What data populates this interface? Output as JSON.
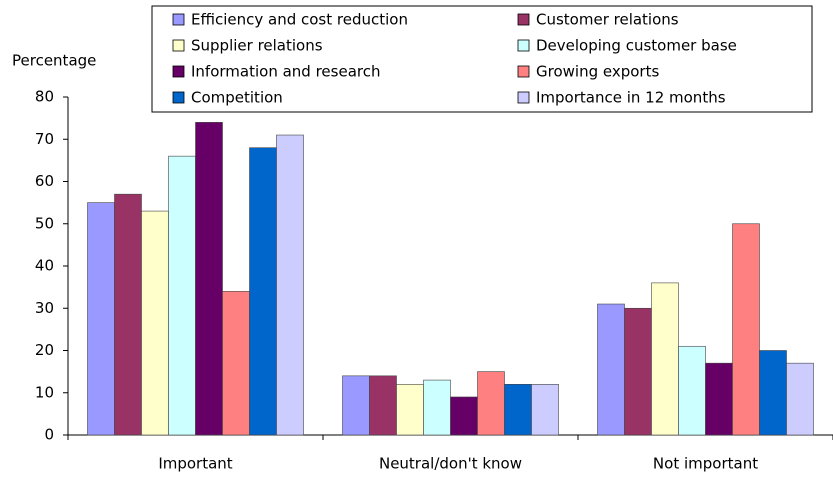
{
  "chart_data": {
    "type": "bar",
    "ylabel": "Percentage",
    "categories": [
      "Important",
      "Neutral/don't know",
      "Not important"
    ],
    "series": [
      {
        "name": "Efficiency and cost reduction",
        "color": "#9999ff",
        "values": [
          55,
          14,
          31
        ]
      },
      {
        "name": "Customer relations",
        "color": "#993366",
        "values": [
          57,
          14,
          30
        ]
      },
      {
        "name": "Supplier relations",
        "color": "#ffffcc",
        "values": [
          53,
          12,
          36
        ]
      },
      {
        "name": "Developing customer base",
        "color": "#ccffff",
        "values": [
          66,
          13,
          21
        ]
      },
      {
        "name": "Information and research",
        "color": "#660066",
        "values": [
          74,
          9,
          17
        ]
      },
      {
        "name": "Growing exports",
        "color": "#ff8080",
        "values": [
          34,
          15,
          50
        ]
      },
      {
        "name": "Competition",
        "color": "#0066cc",
        "values": [
          68,
          12,
          20
        ]
      },
      {
        "name": "Importance in 12 months",
        "color": "#ccccff",
        "values": [
          71,
          12,
          17
        ]
      }
    ],
    "ylim": [
      0,
      80
    ],
    "yticks": [
      0,
      10,
      20,
      30,
      40,
      50,
      60,
      70,
      80
    ],
    "grid": false,
    "legend": "top"
  }
}
